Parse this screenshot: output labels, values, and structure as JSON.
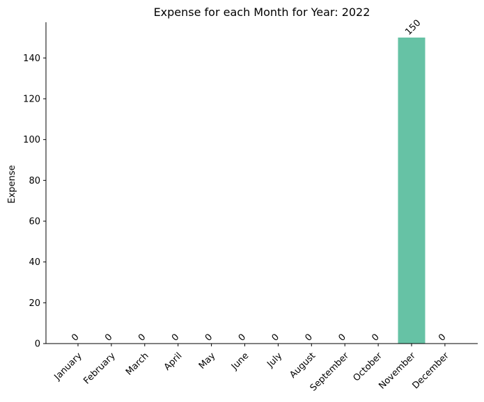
{
  "chart_data": {
    "type": "bar",
    "title": "Expense for each Month for Year: 2022",
    "xlabel": "",
    "ylabel": "Expense",
    "categories": [
      "January",
      "February",
      "March",
      "April",
      "May",
      "June",
      "July",
      "August",
      "September",
      "October",
      "November",
      "December"
    ],
    "values": [
      0,
      0,
      0,
      0,
      0,
      0,
      0,
      0,
      0,
      0,
      150,
      0
    ],
    "data_labels": [
      "0",
      "0",
      "0",
      "0",
      "0",
      "0",
      "0",
      "0",
      "0",
      "0",
      "150",
      "0"
    ],
    "ylim": [
      0,
      157.5
    ],
    "yticks": [
      0,
      20,
      40,
      60,
      80,
      100,
      120,
      140
    ],
    "bar_color": "#66c2a5",
    "grid": false,
    "legend": "none"
  }
}
